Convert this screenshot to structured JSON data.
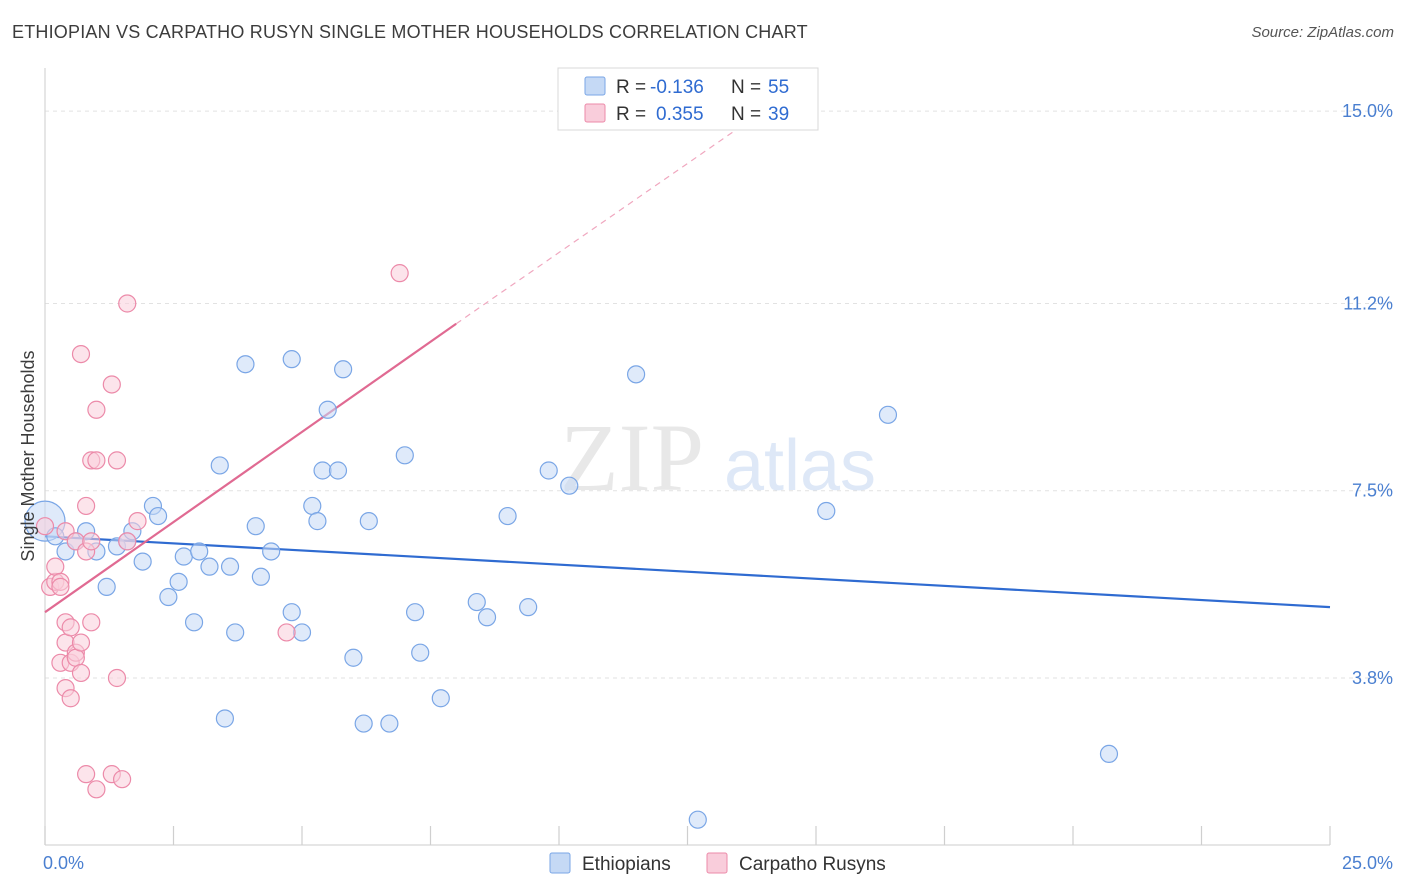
{
  "title": "ETHIOPIAN VS CARPATHO RUSYN SINGLE MOTHER HOUSEHOLDS CORRELATION CHART",
  "source": "Source: ZipAtlas.com",
  "watermark": {
    "zip": "ZIP",
    "atlas": "atlas"
  },
  "legend_box": {
    "rows": [
      {
        "r_label": "R =",
        "r_value": "-0.136",
        "n_label": "N =",
        "n_value": "55",
        "color": "#a9c6f0"
      },
      {
        "r_label": "R =",
        "r_value": "0.355",
        "n_label": "N =",
        "n_value": "39",
        "color": "#f5b8cb"
      }
    ]
  },
  "chart_data": {
    "type": "scatter",
    "ylabel": "Single Mother Households",
    "xlim": [
      0,
      25
    ],
    "ylim": [
      0.5,
      15.3
    ],
    "x_tick_labels": [
      {
        "value": 0,
        "label": "0.0%"
      },
      {
        "value": 25,
        "label": "25.0%"
      }
    ],
    "y_tick_labels": [
      {
        "value": 3.8,
        "label": "3.8%"
      },
      {
        "value": 7.5,
        "label": "7.5%"
      },
      {
        "value": 11.2,
        "label": "11.2%"
      },
      {
        "value": 15.0,
        "label": "15.0%"
      }
    ],
    "grid": "horizontal dashed",
    "legend_position": "bottom-center",
    "series": [
      {
        "name": "Ethiopians",
        "color": "#7aa6e6",
        "fill": "#c5d9f5",
        "trend": {
          "x0": 0,
          "y0": 6.6,
          "x1": 25,
          "y1": 5.2
        },
        "points": [
          [
            0.0,
            6.9
          ],
          [
            0.2,
            6.6
          ],
          [
            0.4,
            6.3
          ],
          [
            0.6,
            6.5
          ],
          [
            0.8,
            6.7
          ],
          [
            1.0,
            6.3
          ],
          [
            1.2,
            5.6
          ],
          [
            1.4,
            6.4
          ],
          [
            1.6,
            6.5
          ],
          [
            1.7,
            6.7
          ],
          [
            1.9,
            6.1
          ],
          [
            2.1,
            7.2
          ],
          [
            2.2,
            7.0
          ],
          [
            2.4,
            5.4
          ],
          [
            2.6,
            5.7
          ],
          [
            2.7,
            6.2
          ],
          [
            2.9,
            4.9
          ],
          [
            3.0,
            6.3
          ],
          [
            3.2,
            6.0
          ],
          [
            3.4,
            8.0
          ],
          [
            3.6,
            6.0
          ],
          [
            3.7,
            4.7
          ],
          [
            3.9,
            10.0
          ],
          [
            4.1,
            6.8
          ],
          [
            4.2,
            5.8
          ],
          [
            4.4,
            6.3
          ],
          [
            4.8,
            10.1
          ],
          [
            4.8,
            5.1
          ],
          [
            5.0,
            4.7
          ],
          [
            5.2,
            7.2
          ],
          [
            5.3,
            6.9
          ],
          [
            5.4,
            7.9
          ],
          [
            5.5,
            9.1
          ],
          [
            5.7,
            7.9
          ],
          [
            5.8,
            9.9
          ],
          [
            6.0,
            4.2
          ],
          [
            6.2,
            2.9
          ],
          [
            6.3,
            6.9
          ],
          [
            6.7,
            2.9
          ],
          [
            7.0,
            8.2
          ],
          [
            7.2,
            5.1
          ],
          [
            7.3,
            4.3
          ],
          [
            7.7,
            3.4
          ],
          [
            8.4,
            5.3
          ],
          [
            8.6,
            5.0
          ],
          [
            9.0,
            7.0
          ],
          [
            9.4,
            5.2
          ],
          [
            9.8,
            7.9
          ],
          [
            10.2,
            7.6
          ],
          [
            11.5,
            9.8
          ],
          [
            12.7,
            1.0
          ],
          [
            15.2,
            7.1
          ],
          [
            16.4,
            9.0
          ],
          [
            20.7,
            2.3
          ],
          [
            3.5,
            3.0
          ]
        ]
      },
      {
        "name": "Carpatho Rusyns",
        "color": "#ec8aa9",
        "fill": "#f9cddb",
        "trend": {
          "x0": 0,
          "y0": 5.1,
          "x1": 8.0,
          "y1": 10.8
        },
        "trend_extended": {
          "x0": 8.0,
          "y0": 10.8,
          "x1": 13.4,
          "y1": 14.6
        },
        "points": [
          [
            0.0,
            6.8
          ],
          [
            0.1,
            5.6
          ],
          [
            0.2,
            5.7
          ],
          [
            0.2,
            6.0
          ],
          [
            0.3,
            5.7
          ],
          [
            0.3,
            4.1
          ],
          [
            0.4,
            6.7
          ],
          [
            0.4,
            4.9
          ],
          [
            0.4,
            4.5
          ],
          [
            0.4,
            3.6
          ],
          [
            0.5,
            3.4
          ],
          [
            0.5,
            4.8
          ],
          [
            0.5,
            4.1
          ],
          [
            0.6,
            4.3
          ],
          [
            0.6,
            4.2
          ],
          [
            0.6,
            6.5
          ],
          [
            0.7,
            4.5
          ],
          [
            0.7,
            10.2
          ],
          [
            0.7,
            3.9
          ],
          [
            0.8,
            6.3
          ],
          [
            0.8,
            7.2
          ],
          [
            0.8,
            1.9
          ],
          [
            0.9,
            8.1
          ],
          [
            0.9,
            6.5
          ],
          [
            0.9,
            4.9
          ],
          [
            1.0,
            1.6
          ],
          [
            1.0,
            9.1
          ],
          [
            1.0,
            8.1
          ],
          [
            1.3,
            9.6
          ],
          [
            1.3,
            1.9
          ],
          [
            1.4,
            8.1
          ],
          [
            1.4,
            3.8
          ],
          [
            1.5,
            1.8
          ],
          [
            1.6,
            11.2
          ],
          [
            1.6,
            6.5
          ],
          [
            1.8,
            6.9
          ],
          [
            4.7,
            4.7
          ],
          [
            6.9,
            11.8
          ],
          [
            0.3,
            5.6
          ]
        ]
      }
    ]
  }
}
